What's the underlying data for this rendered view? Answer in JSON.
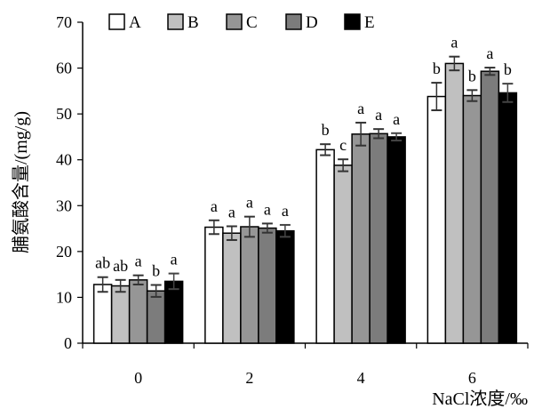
{
  "chart_data": {
    "type": "bar",
    "categories": [
      "0",
      "2",
      "4",
      "6"
    ],
    "xlabel": "NaCl浓度/‰",
    "ylabel": "脯氨酸含量/(mg/g)",
    "ylim": [
      0,
      70
    ],
    "yticks": [
      0,
      10,
      20,
      30,
      40,
      50,
      60,
      70
    ],
    "grid": false,
    "legend": "top",
    "series": [
      {
        "name": "A",
        "color": "#ffffff",
        "values": [
          12.8,
          25.3,
          42.2,
          53.8
        ],
        "errors": [
          1.6,
          1.5,
          1.2,
          3.0
        ],
        "labels": [
          "ab",
          "a",
          "b",
          "b"
        ]
      },
      {
        "name": "B",
        "color": "#c0c0c0",
        "values": [
          12.5,
          24.0,
          38.8,
          61.0
        ],
        "errors": [
          1.3,
          1.5,
          1.3,
          1.5
        ],
        "labels": [
          "ab",
          "a",
          "c",
          "a"
        ]
      },
      {
        "name": "C",
        "color": "#969696",
        "values": [
          13.8,
          25.4,
          45.6,
          54.0
        ],
        "errors": [
          1.0,
          2.2,
          2.5,
          1.2
        ],
        "labels": [
          "a",
          "a",
          "a",
          "b"
        ]
      },
      {
        "name": "D",
        "color": "#7c7c7c",
        "values": [
          11.4,
          25.1,
          45.7,
          59.3
        ],
        "errors": [
          1.3,
          1.0,
          1.0,
          0.8
        ],
        "labels": [
          "b",
          "a",
          "a",
          "a"
        ]
      },
      {
        "name": "E",
        "color": "#000000",
        "values": [
          13.5,
          24.5,
          45.0,
          54.6
        ],
        "errors": [
          1.7,
          1.3,
          0.8,
          2.0
        ],
        "labels": [
          "a",
          "a",
          "a",
          "b"
        ]
      }
    ]
  }
}
